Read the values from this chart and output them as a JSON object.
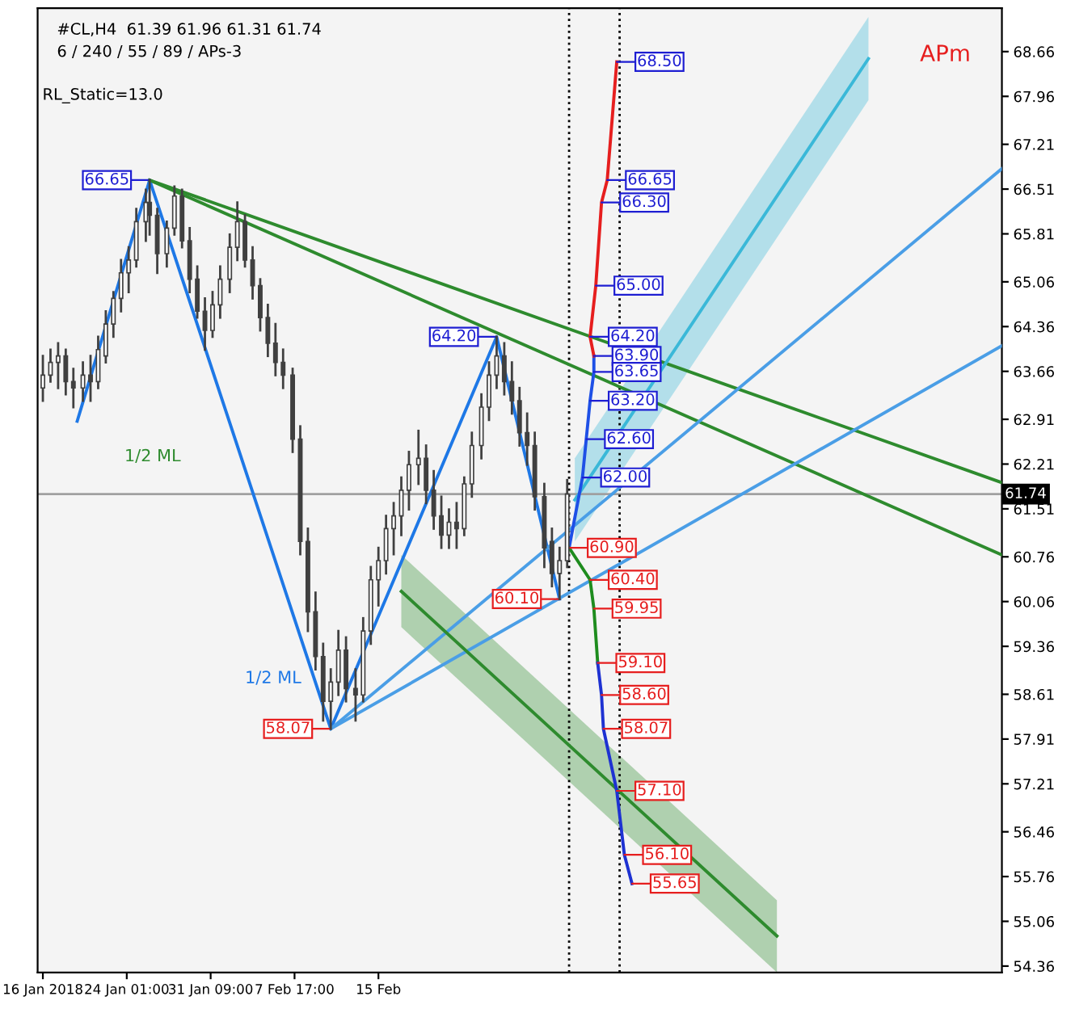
{
  "chart_data": {
    "type": "candlestick",
    "title": "#CL,H4  61.39 61.96 61.31 61.74",
    "subtitle": "6 / 240 / 55 / 89 / APs-3",
    "annotations": [
      "RL_Static=13.0",
      "APm",
      "1/2 ML",
      "1/2 ML",
      {
        "text": "66.65",
        "x": "2018-01-26T01:00",
        "y": 66.65
      },
      {
        "text": "64.20",
        "x": "2018-02-25T09:00",
        "y": 64.2
      },
      {
        "text": "58.07",
        "x": "2018-02-10T21:00",
        "y": 58.07
      },
      {
        "text": "60.10",
        "x": "2018-03-02T21:00",
        "y": 60.1
      },
      {
        "text": "68.50",
        "x": "2018-03-07T21:00",
        "y": 68.5
      },
      {
        "text": "66.65",
        "x": "2018-03-07T01:00",
        "y": 66.65
      },
      {
        "text": "66.30",
        "x": "2018-03-06T13:00",
        "y": 66.3
      },
      {
        "text": "65.00",
        "x": "2018-03-06T01:00",
        "y": 65.0
      },
      {
        "text": "64.20",
        "x": "2018-03-05T13:00",
        "y": 64.2
      },
      {
        "text": "63.90",
        "x": "2018-03-05T21:00",
        "y": 63.9
      },
      {
        "text": "63.65",
        "x": "2018-03-05T21:00",
        "y": 63.65
      },
      {
        "text": "63.20",
        "x": "2018-03-05T13:00",
        "y": 63.2
      },
      {
        "text": "62.60",
        "x": "2018-03-05T05:00",
        "y": 62.6
      },
      {
        "text": "62.00",
        "x": "2018-03-04T21:00",
        "y": 62.0
      },
      {
        "text": "60.90",
        "x": "2018-03-03T17:00",
        "y": 60.9
      },
      {
        "text": "60.40",
        "x": "2018-03-05T13:00",
        "y": 60.4
      },
      {
        "text": "59.95",
        "x": "2018-03-05T21:00",
        "y": 59.95
      },
      {
        "text": "59.10",
        "x": "2018-03-06T05:00",
        "y": 59.1
      },
      {
        "text": "58.60",
        "x": "2018-03-06T13:00",
        "y": 58.6
      },
      {
        "text": "58.07",
        "x": "2018-03-06T17:00",
        "y": 58.07
      },
      {
        "text": "57.10",
        "x": "2018-03-07T21:00",
        "y": 57.1
      },
      {
        "text": "56.10",
        "x": "2018-03-08T13:00",
        "y": 56.1
      },
      {
        "text": "55.65",
        "x": "2018-03-09T05:00",
        "y": 55.65
      }
    ],
    "x": [
      "2018-01-16T17:00",
      "2018-01-17T09:00",
      "2018-01-18T01:00",
      "2018-01-18T17:00",
      "2018-01-19T09:00",
      "2018-01-20T05:00",
      "2018-01-20T21:00",
      "2018-01-21T13:00",
      "2018-01-22T05:00",
      "2018-01-22T21:00",
      "2018-01-23T13:00",
      "2018-01-24T05:00",
      "2018-01-24T21:00",
      "2018-01-25T17:00",
      "2018-01-26T01:00",
      "2018-01-26T17:00",
      "2018-01-27T13:00",
      "2018-01-28T05:00",
      "2018-01-28T21:00",
      "2018-01-29T13:00",
      "2018-01-30T05:00",
      "2018-01-30T21:00",
      "2018-01-31T13:00",
      "2018-02-01T05:00",
      "2018-02-02T01:00",
      "2018-02-02T17:00",
      "2018-02-03T09:00",
      "2018-02-04T01:00",
      "2018-02-04T17:00",
      "2018-02-05T09:00",
      "2018-02-06T01:00",
      "2018-02-06T17:00",
      "2018-02-07T13:00",
      "2018-02-08T05:00",
      "2018-02-08T21:00",
      "2018-02-09T13:00",
      "2018-02-10T05:00",
      "2018-02-10T21:00",
      "2018-02-11T13:00",
      "2018-02-12T05:00",
      "2018-02-13T01:00",
      "2018-02-13T17:00",
      "2018-02-14T09:00",
      "2018-02-15T01:00",
      "2018-02-15T17:00",
      "2018-02-16T09:00",
      "2018-02-17T01:00",
      "2018-02-17T17:00",
      "2018-02-18T13:00",
      "2018-02-19T05:00",
      "2018-02-19T21:00",
      "2018-02-20T13:00",
      "2018-02-21T05:00",
      "2018-02-21T21:00",
      "2018-02-22T13:00",
      "2018-02-23T05:00",
      "2018-02-24T01:00",
      "2018-02-24T17:00",
      "2018-02-25T09:00",
      "2018-02-26T01:00",
      "2018-02-26T17:00",
      "2018-02-27T09:00",
      "2018-02-28T01:00",
      "2018-02-28T17:00",
      "2018-03-01T13:00",
      "2018-03-02T05:00",
      "2018-03-02T21:00",
      "2018-03-03T13:00"
    ],
    "ohlc": [
      [
        63.4,
        63.9,
        63.2,
        63.6
      ],
      [
        63.6,
        64.0,
        63.5,
        63.8
      ],
      [
        63.8,
        64.1,
        63.4,
        63.9
      ],
      [
        63.9,
        64.0,
        63.3,
        63.5
      ],
      [
        63.5,
        63.7,
        63.1,
        63.4
      ],
      [
        63.4,
        63.8,
        63.2,
        63.6
      ],
      [
        63.6,
        63.9,
        63.2,
        63.5
      ],
      [
        63.5,
        64.2,
        63.4,
        64.0
      ],
      [
        63.9,
        64.6,
        63.8,
        64.4
      ],
      [
        64.4,
        64.9,
        64.2,
        64.8
      ],
      [
        64.8,
        65.4,
        64.6,
        65.2
      ],
      [
        65.2,
        65.6,
        64.9,
        65.4
      ],
      [
        65.4,
        66.2,
        65.3,
        66.0
      ],
      [
        66.0,
        66.5,
        65.7,
        66.3
      ],
      [
        66.3,
        66.65,
        65.8,
        66.1
      ],
      [
        66.1,
        66.2,
        65.2,
        65.5
      ],
      [
        65.5,
        66.0,
        65.3,
        65.9
      ],
      [
        65.9,
        66.55,
        65.8,
        66.4
      ],
      [
        66.4,
        66.5,
        65.6,
        65.7
      ],
      [
        65.7,
        65.9,
        64.9,
        65.1
      ],
      [
        65.1,
        65.3,
        64.5,
        64.6
      ],
      [
        64.6,
        64.8,
        64.0,
        64.3
      ],
      [
        64.3,
        64.9,
        64.2,
        64.7
      ],
      [
        64.7,
        65.3,
        64.5,
        65.1
      ],
      [
        65.1,
        65.8,
        64.9,
        65.6
      ],
      [
        65.6,
        66.3,
        65.4,
        66.0
      ],
      [
        66.0,
        66.1,
        65.3,
        65.4
      ],
      [
        65.4,
        65.6,
        64.8,
        65.0
      ],
      [
        65.0,
        65.1,
        64.3,
        64.5
      ],
      [
        64.5,
        64.7,
        63.9,
        64.1
      ],
      [
        64.1,
        64.4,
        63.6,
        63.8
      ],
      [
        63.8,
        64.0,
        63.4,
        63.6
      ],
      [
        63.6,
        63.7,
        62.4,
        62.6
      ],
      [
        62.6,
        62.8,
        60.8,
        61.0
      ],
      [
        61.0,
        61.2,
        59.6,
        59.9
      ],
      [
        59.9,
        60.2,
        59.0,
        59.2
      ],
      [
        59.2,
        59.4,
        58.2,
        58.5
      ],
      [
        58.5,
        59.0,
        58.07,
        58.8
      ],
      [
        58.8,
        59.6,
        58.6,
        59.3
      ],
      [
        59.3,
        59.5,
        58.5,
        58.7
      ],
      [
        58.7,
        59.0,
        58.2,
        58.6
      ],
      [
        58.6,
        59.8,
        58.5,
        59.6
      ],
      [
        59.6,
        60.6,
        59.4,
        60.4
      ],
      [
        60.4,
        60.9,
        60.0,
        60.7
      ],
      [
        60.7,
        61.4,
        60.5,
        61.2
      ],
      [
        61.2,
        61.6,
        60.8,
        61.4
      ],
      [
        61.4,
        62.0,
        61.1,
        61.8
      ],
      [
        61.8,
        62.4,
        61.5,
        62.2
      ],
      [
        62.2,
        62.73,
        61.9,
        62.3
      ],
      [
        62.3,
        62.5,
        61.6,
        61.8
      ],
      [
        61.8,
        62.1,
        61.2,
        61.4
      ],
      [
        61.4,
        61.7,
        60.9,
        61.1
      ],
      [
        61.1,
        61.5,
        60.9,
        61.3
      ],
      [
        61.3,
        61.6,
        60.9,
        61.2
      ],
      [
        61.2,
        62.0,
        61.1,
        61.9
      ],
      [
        61.9,
        62.7,
        61.7,
        62.5
      ],
      [
        62.5,
        63.3,
        62.3,
        63.1
      ],
      [
        63.1,
        63.8,
        62.9,
        63.6
      ],
      [
        63.6,
        64.2,
        63.4,
        63.9
      ],
      [
        63.9,
        64.1,
        63.3,
        63.5
      ],
      [
        63.5,
        63.8,
        63.0,
        63.2
      ],
      [
        63.2,
        63.4,
        62.5,
        62.7
      ],
      [
        62.7,
        63.0,
        62.2,
        62.5
      ],
      [
        62.5,
        62.7,
        61.5,
        61.7
      ],
      [
        61.7,
        61.9,
        60.6,
        60.9
      ],
      [
        61.0,
        61.2,
        60.3,
        60.5
      ],
      [
        60.5,
        60.9,
        60.1,
        60.7
      ],
      [
        60.7,
        61.96,
        60.6,
        61.74
      ]
    ],
    "color": "#404040",
    "series": [
      {
        "type": "line",
        "color": "#1e78e6",
        "x": [
          "2018-01-19T17:00",
          "2018-01-26T01:00",
          "2018-02-10T21:00",
          "2018-02-25T09:00",
          "2018-03-02T21:00"
        ],
        "values": [
          62.88,
          66.65,
          58.07,
          64.2,
          60.1
        ]
      },
      {
        "type": "line",
        "color": "#2e8b2e",
        "x": [
          "2018-01-26T01:00",
          "2018-04-10T13:00"
        ],
        "values": [
          66.65,
          60.79
        ]
      },
      {
        "type": "line",
        "color": "#2e8b2e",
        "x": [
          "2018-01-26T01:00",
          "2018-04-10T13:00"
        ],
        "values": [
          66.65,
          61.92
        ]
      },
      {
        "type": "line",
        "color": "#4a9ee6",
        "x": [
          "2018-02-10T21:00",
          "2018-04-10T13:00"
        ],
        "values": [
          58.07,
          64.06
        ]
      },
      {
        "type": "line",
        "color": "#4a9ee6",
        "x": [
          "2018-02-10T21:00",
          "2018-04-10T13:00"
        ],
        "values": [
          58.07,
          66.83
        ]
      },
      {
        "type": "line",
        "color": "#2e8b2e",
        "x": [
          "2018-02-17T01:00",
          "2018-03-21T21:00"
        ],
        "values": [
          60.22,
          54.83
        ],
        "lower": [
          59.66,
          54.26
        ],
        "upper": [
          60.79,
          55.39
        ]
      },
      {
        "type": "line",
        "color": "#3ab8d8",
        "x": [
          "2018-03-04T05:00",
          "2018-03-29T21:00"
        ],
        "values": [
          61.65,
          68.55
        ],
        "lower": [
          61.0,
          67.9
        ],
        "upper": [
          62.3,
          69.2
        ]
      },
      {
        "type": "line",
        "color": "#1e50e6",
        "x": [
          "2018-03-03T17:00",
          "2018-03-04T21:00",
          "2018-03-05T05:00",
          "2018-03-05T13:00",
          "2018-03-05T21:00",
          "2018-03-05T21:00"
        ],
        "values": [
          60.9,
          62.0,
          62.6,
          63.2,
          63.65,
          63.9
        ]
      },
      {
        "type": "line",
        "color": "#e61e1e",
        "x": [
          "2018-03-05T21:00",
          "2018-03-05T13:00",
          "2018-03-06T01:00",
          "2018-03-06T13:00",
          "2018-03-07T01:00",
          "2018-03-07T21:00"
        ],
        "values": [
          63.9,
          64.2,
          65.0,
          66.3,
          66.65,
          68.5
        ]
      },
      {
        "type": "line",
        "color": "#1e8c1e",
        "x": [
          "2018-03-03T17:00",
          "2018-03-05T13:00",
          "2018-03-05T21:00",
          "2018-03-06T05:00"
        ],
        "values": [
          60.9,
          60.4,
          59.95,
          59.1
        ]
      },
      {
        "type": "line",
        "color": "#1e32d2",
        "x": [
          "2018-03-06T05:00",
          "2018-03-06T13:00",
          "2018-03-06T17:00",
          "2018-03-07T21:00",
          "2018-03-08T13:00",
          "2018-03-09T05:00"
        ],
        "values": [
          59.1,
          58.6,
          58.07,
          57.1,
          56.1,
          55.65
        ]
      }
    ],
    "ref_lines": [
      {
        "axis": "y",
        "value": 61.74,
        "label": "61.74",
        "color": "#a0a0a0",
        "line_style": "solid"
      },
      {
        "axis": "x",
        "value": "2018-03-03T17:00",
        "color": "#000000",
        "line_style": "dotted"
      },
      {
        "axis": "x",
        "value": "2018-03-08T03:00",
        "color": "#000000",
        "line_style": "dotted"
      }
    ],
    "xlim": [
      "2018-01-16T06:00",
      "2018-04-10T13:00"
    ],
    "xticks": [
      {
        "value": "2018-01-16T17:00",
        "label": "16 Jan 2018"
      },
      {
        "value": "2018-01-24T01:00",
        "label": "24 Jan 01:00"
      },
      {
        "value": "2018-01-31T09:00",
        "label": "31 Jan 09:00"
      },
      {
        "value": "2018-02-07T17:00",
        "label": "7 Feb 17:00"
      },
      {
        "value": "2018-02-15T01:00",
        "label": "15 Feb"
      }
    ],
    "ylim": [
      54.26,
      69.34
    ],
    "yticks": [
      54.36,
      55.06,
      55.76,
      56.46,
      57.21,
      57.91,
      58.61,
      59.36,
      60.06,
      60.76,
      61.51,
      62.21,
      62.91,
      63.66,
      64.36,
      65.06,
      65.81,
      66.51,
      67.21,
      67.96,
      68.66
    ],
    "grid": false,
    "legend": false
  }
}
